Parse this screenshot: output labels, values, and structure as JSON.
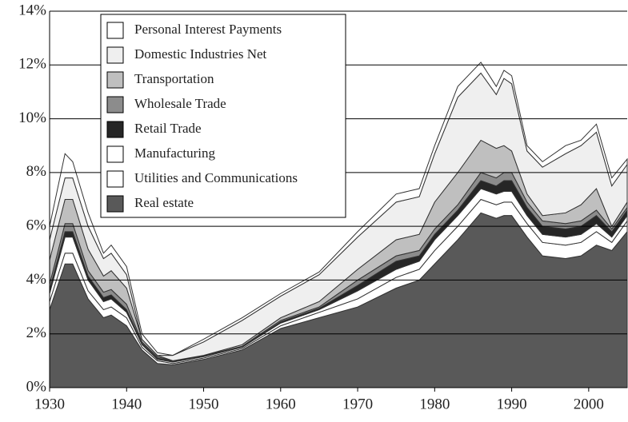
{
  "chart_data": {
    "type": "stacked-area",
    "x": [
      1930,
      1932,
      1933,
      1935,
      1937,
      1938,
      1940,
      1942,
      1944,
      1946,
      1950,
      1955,
      1960,
      1965,
      1970,
      1975,
      1978,
      1980,
      1983,
      1986,
      1988,
      1989,
      1990,
      1992,
      1994,
      1997,
      1999,
      2001,
      2003,
      2005
    ],
    "series": [
      {
        "name": "Real estate",
        "color": "#595959",
        "values": [
          2.9,
          4.6,
          4.6,
          3.3,
          2.6,
          2.7,
          2.3,
          1.4,
          0.9,
          0.85,
          1.05,
          1.4,
          2.2,
          2.6,
          3.0,
          3.7,
          4.0,
          4.6,
          5.5,
          6.5,
          6.3,
          6.4,
          6.4,
          5.6,
          4.9,
          4.8,
          4.9,
          5.3,
          5.1,
          5.8
        ]
      },
      {
        "name": "Utilities and Communications",
        "color": "#ffffff",
        "values": [
          0.3,
          0.4,
          0.4,
          0.3,
          0.3,
          0.3,
          0.3,
          0.1,
          0.1,
          0.05,
          0.05,
          0.05,
          0.1,
          0.2,
          0.3,
          0.4,
          0.4,
          0.5,
          0.5,
          0.5,
          0.5,
          0.5,
          0.5,
          0.5,
          0.5,
          0.5,
          0.5,
          0.5,
          0.3,
          0.4
        ]
      },
      {
        "name": "Manufacturing",
        "color": "#ffffff",
        "values": [
          0.3,
          0.6,
          0.6,
          0.4,
          0.3,
          0.3,
          0.2,
          0.1,
          0.05,
          0.05,
          0.05,
          0.05,
          0.1,
          0.1,
          0.3,
          0.3,
          0.3,
          0.4,
          0.4,
          0.4,
          0.4,
          0.4,
          0.4,
          0.3,
          0.3,
          0.3,
          0.3,
          0.3,
          0.2,
          0.2
        ]
      },
      {
        "name": "Retail Trade",
        "color": "#262626",
        "values": [
          0.15,
          0.2,
          0.2,
          0.15,
          0.15,
          0.15,
          0.1,
          0.05,
          0.05,
          0.02,
          0.02,
          0.02,
          0.05,
          0.05,
          0.2,
          0.3,
          0.2,
          0.2,
          0.2,
          0.3,
          0.3,
          0.4,
          0.4,
          0.3,
          0.3,
          0.3,
          0.3,
          0.3,
          0.2,
          0.2
        ]
      },
      {
        "name": "Wholesale Trade",
        "color": "#8c8c8c",
        "values": [
          0.2,
          0.3,
          0.3,
          0.2,
          0.2,
          0.2,
          0.2,
          0.05,
          0.05,
          0.02,
          0.02,
          0.02,
          0.05,
          0.05,
          0.2,
          0.2,
          0.2,
          0.2,
          0.2,
          0.3,
          0.3,
          0.3,
          0.3,
          0.2,
          0.2,
          0.2,
          0.2,
          0.2,
          0.1,
          0.1
        ]
      },
      {
        "name": "Transportation",
        "color": "#bfbfbf",
        "values": [
          0.9,
          0.9,
          0.9,
          0.8,
          0.6,
          0.7,
          0.6,
          0.1,
          0.05,
          0.01,
          0.01,
          0.06,
          0.1,
          0.2,
          0.4,
          0.6,
          0.6,
          1.0,
          1.2,
          1.2,
          1.1,
          1.0,
          0.8,
          0.3,
          0.2,
          0.4,
          0.6,
          0.8,
          0.1,
          0.2
        ]
      },
      {
        "name": "Domestic Industries Net",
        "color": "#efefef",
        "values": [
          0.75,
          0.8,
          0.8,
          0.85,
          0.65,
          0.65,
          0.5,
          0,
          0,
          0.2,
          0.5,
          0.9,
          0.8,
          1.0,
          1.2,
          1.4,
          1.4,
          1.8,
          2.8,
          2.5,
          2.0,
          2.5,
          2.5,
          1.6,
          1.8,
          2.2,
          2.2,
          2.1,
          1.5,
          1.4
        ]
      },
      {
        "name": "Personal Interest Payments",
        "color": "#ffffff",
        "values": [
          0.5,
          0.9,
          0.6,
          0.5,
          0.2,
          0.3,
          0.3,
          0.2,
          0.1,
          0,
          0.1,
          0.1,
          0.1,
          0.1,
          0.2,
          0.3,
          0.3,
          0.3,
          0.4,
          0.4,
          0.3,
          0.3,
          0.3,
          0.2,
          0.2,
          0.3,
          0.2,
          0.3,
          0.3,
          0.2
        ]
      }
    ],
    "xlim": [
      1930,
      2005
    ],
    "xticks": [
      1930,
      1940,
      1950,
      1960,
      1970,
      1980,
      1990,
      2000
    ],
    "ylim": [
      0,
      14
    ],
    "yticks": [
      {
        "value": 0,
        "label": "0%"
      },
      {
        "value": 2,
        "label": "2%"
      },
      {
        "value": 4,
        "label": "4%"
      },
      {
        "value": 6,
        "label": "6%"
      },
      {
        "value": 8,
        "label": "8%"
      },
      {
        "value": 10,
        "label": "10%"
      },
      {
        "value": 12,
        "label": "12%"
      },
      {
        "value": 14,
        "label": "14%"
      }
    ],
    "grid": true,
    "legend": "top-left"
  }
}
